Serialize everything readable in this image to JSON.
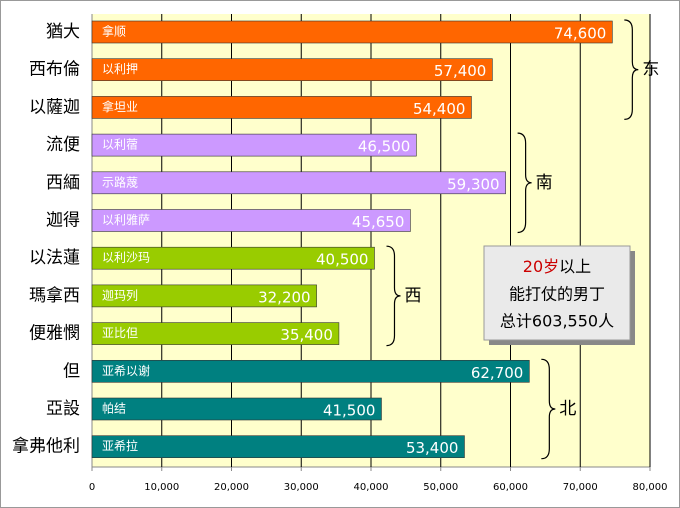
{
  "chart_data": {
    "type": "bar",
    "orientation": "horizontal",
    "series": [
      {
        "name": "东",
        "color": "#ff6600",
        "categories": [
          "猶大",
          "西布倫",
          "以薩迦"
        ],
        "leaders": [
          "拿顺",
          "以利押",
          "拿坦业"
        ],
        "values": [
          74600,
          57400,
          54400
        ],
        "value_labels": [
          "74,600",
          "57,400",
          "54,400"
        ]
      },
      {
        "name": "南",
        "color": "#cc99ff",
        "categories": [
          "流便",
          "西緬",
          "迦得"
        ],
        "leaders": [
          "以利蓿",
          "示路蔑",
          "以利雅萨"
        ],
        "values": [
          46500,
          59300,
          45650
        ],
        "value_labels": [
          "46,500",
          "59,300",
          "45,650"
        ]
      },
      {
        "name": "西",
        "color": "#99cc00",
        "categories": [
          "以法蓮",
          "瑪拿西",
          "便雅憫"
        ],
        "leaders": [
          "以利沙玛",
          "迦玛列",
          "亚比但"
        ],
        "values": [
          40500,
          32200,
          35400
        ],
        "value_labels": [
          "40,500",
          "32,200",
          "35,400"
        ]
      },
      {
        "name": "北",
        "color": "#008080",
        "categories": [
          "但",
          "亞設",
          "拿弗他利"
        ],
        "leaders": [
          "亚希以谢",
          "帕结",
          "亚希拉"
        ],
        "values": [
          62700,
          41500,
          53400
        ],
        "value_labels": [
          "62,700",
          "41,500",
          "53,400"
        ]
      }
    ],
    "xlim": [
      0,
      80000
    ],
    "xticks": [
      0,
      {
        "value": 10000,
        "label": "10,000"
      },
      {
        "value": 20000,
        "label": "20,000"
      },
      {
        "value": 30000,
        "label": "30,000"
      },
      {
        "value": 40000,
        "label": "40,000"
      },
      {
        "value": 50000,
        "label": "50,000"
      },
      {
        "value": 60000,
        "label": "60,000"
      },
      {
        "value": 70000,
        "label": "70,000"
      },
      {
        "value": 80000,
        "label": "80,000"
      }
    ],
    "grid": true,
    "annotation": {
      "highlight": "20岁",
      "lines": [
        "以上",
        "能打仗的男丁",
        "总计603,550人"
      ]
    }
  }
}
